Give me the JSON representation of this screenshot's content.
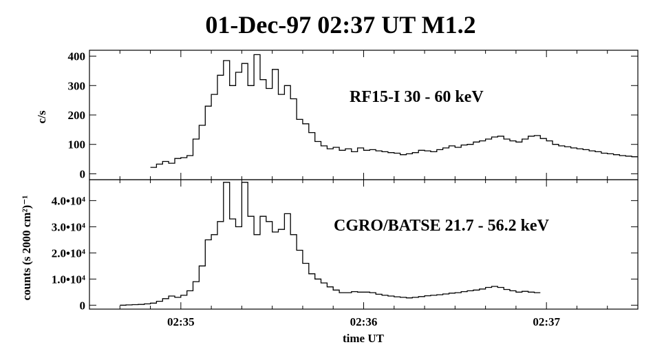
{
  "chart_data": [
    {
      "type": "line",
      "step": true,
      "title": "01-Dec-97  02:37 UT  M1.2",
      "annotation": "RF15-I   30 - 60 keV",
      "ylabel": "c/s",
      "xlabel": "",
      "xlim": [
        "02:34:30",
        "02:37:30"
      ],
      "ylim": [
        -20,
        420
      ],
      "yticks": [
        0,
        100,
        200,
        300,
        400
      ],
      "ytick_labels": [
        "0",
        "100",
        "200",
        "300",
        "400"
      ],
      "xticks": [
        "02:35:00",
        "02:36:00",
        "02:37:00"
      ],
      "series": [
        {
          "x": [
            "02:34:50",
            "02:34:52",
            "02:34:54",
            "02:34:56",
            "02:34:58",
            "02:35:00",
            "02:35:02",
            "02:35:04",
            "02:35:06",
            "02:35:08",
            "02:35:10",
            "02:35:12",
            "02:35:14",
            "02:35:16",
            "02:35:18",
            "02:35:20",
            "02:35:22",
            "02:35:24",
            "02:35:26",
            "02:35:28",
            "02:35:30",
            "02:35:32",
            "02:35:34",
            "02:35:36",
            "02:35:38",
            "02:35:40",
            "02:35:42",
            "02:35:44",
            "02:35:46",
            "02:35:48",
            "02:35:50",
            "02:35:52",
            "02:35:54",
            "02:35:56",
            "02:35:58",
            "02:36:00",
            "02:36:02",
            "02:36:04",
            "02:36:06",
            "02:36:08",
            "02:36:10",
            "02:36:12",
            "02:36:14",
            "02:36:16",
            "02:36:18",
            "02:36:20",
            "02:36:22",
            "02:36:24",
            "02:36:26",
            "02:36:28",
            "02:36:30",
            "02:36:32",
            "02:36:34",
            "02:36:36",
            "02:36:38",
            "02:36:40",
            "02:36:42",
            "02:36:44",
            "02:36:46",
            "02:36:48",
            "02:36:50",
            "02:36:52",
            "02:36:54",
            "02:36:56",
            "02:36:58",
            "02:37:00",
            "02:37:02",
            "02:37:04",
            "02:37:06",
            "02:37:08",
            "02:37:10",
            "02:37:12",
            "02:37:14",
            "02:37:16",
            "02:37:18",
            "02:37:20",
            "02:37:22",
            "02:37:24",
            "02:37:26",
            "02:37:28"
          ],
          "values": [
            22,
            33,
            42,
            36,
            52,
            55,
            62,
            118,
            165,
            230,
            270,
            335,
            385,
            300,
            345,
            375,
            300,
            405,
            320,
            290,
            355,
            270,
            300,
            255,
            185,
            170,
            140,
            110,
            95,
            85,
            90,
            80,
            85,
            75,
            88,
            80,
            82,
            78,
            75,
            72,
            70,
            65,
            68,
            72,
            80,
            78,
            75,
            82,
            88,
            95,
            90,
            98,
            100,
            108,
            112,
            118,
            125,
            128,
            118,
            112,
            108,
            118,
            128,
            130,
            120,
            112,
            100,
            95,
            92,
            88,
            85,
            82,
            78,
            75,
            70,
            68,
            65,
            62,
            60,
            58
          ]
        }
      ]
    },
    {
      "type": "line",
      "step": true,
      "annotation": "CGRO/BATSE  21.7 - 56.2 keV",
      "ylabel": "counts (s 2000 cm²)⁻¹",
      "xlabel": "time UT",
      "xlim": [
        "02:34:30",
        "02:37:30"
      ],
      "ylim": [
        -1500,
        48000
      ],
      "yticks": [
        0,
        10000,
        20000,
        30000,
        40000
      ],
      "ytick_labels": [
        "0",
        "1.0•10⁴",
        "2.0•10⁴",
        "3.0•10⁴",
        "4.0•10⁴"
      ],
      "xticks": [
        "02:35:00",
        "02:36:00",
        "02:37:00"
      ],
      "xtick_labels": [
        "02:35",
        "02:36",
        "02:37"
      ],
      "series": [
        {
          "x": [
            "02:34:40",
            "02:34:42",
            "02:34:44",
            "02:34:46",
            "02:34:48",
            "02:34:50",
            "02:34:52",
            "02:34:54",
            "02:34:56",
            "02:34:58",
            "02:35:00",
            "02:35:02",
            "02:35:04",
            "02:35:06",
            "02:35:08",
            "02:35:10",
            "02:35:12",
            "02:35:14",
            "02:35:16",
            "02:35:18",
            "02:35:20",
            "02:35:22",
            "02:35:24",
            "02:35:26",
            "02:35:28",
            "02:35:30",
            "02:35:32",
            "02:35:34",
            "02:35:36",
            "02:35:38",
            "02:35:40",
            "02:35:42",
            "02:35:44",
            "02:35:46",
            "02:35:48",
            "02:35:50",
            "02:35:52",
            "02:35:54",
            "02:35:56",
            "02:35:58",
            "02:36:00",
            "02:36:02",
            "02:36:04",
            "02:36:06",
            "02:36:08",
            "02:36:10",
            "02:36:12",
            "02:36:14",
            "02:36:16",
            "02:36:18",
            "02:36:20",
            "02:36:22",
            "02:36:24",
            "02:36:26",
            "02:36:28",
            "02:36:30",
            "02:36:32",
            "02:36:34",
            "02:36:36",
            "02:36:38",
            "02:36:40",
            "02:36:42",
            "02:36:44",
            "02:36:46",
            "02:36:48",
            "02:36:50",
            "02:36:52",
            "02:36:54",
            "02:36:56"
          ],
          "values": [
            0,
            100,
            200,
            300,
            500,
            800,
            1500,
            2500,
            3500,
            3000,
            3800,
            5500,
            9000,
            15000,
            25000,
            27000,
            32000,
            47000,
            33000,
            30000,
            47000,
            34000,
            27000,
            34000,
            32000,
            28000,
            29000,
            35000,
            27000,
            21000,
            16000,
            12000,
            10000,
            8500,
            7000,
            5800,
            4800,
            4800,
            5200,
            5000,
            5000,
            4800,
            4200,
            3800,
            3500,
            3200,
            3000,
            2800,
            3000,
            3300,
            3600,
            3800,
            4000,
            4300,
            4600,
            4800,
            5200,
            5500,
            5800,
            6200,
            6800,
            7200,
            6800,
            6000,
            5500,
            5000,
            5300,
            5000,
            4800
          ]
        }
      ]
    }
  ]
}
